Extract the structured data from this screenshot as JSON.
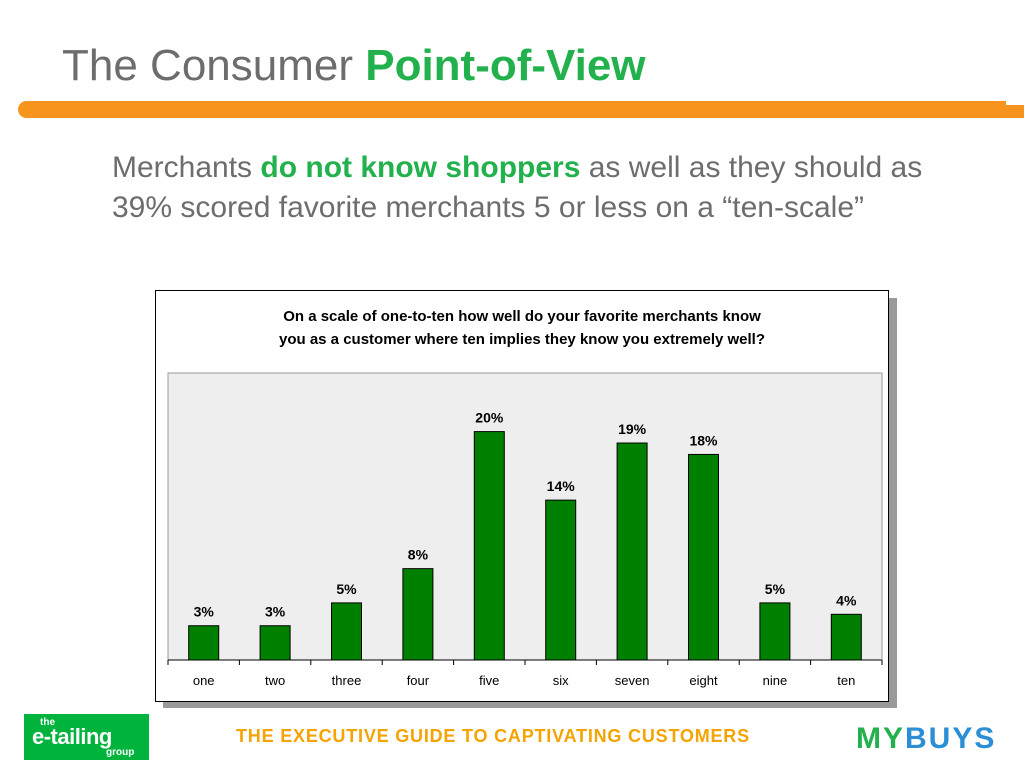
{
  "slide": {
    "title_plain": "The Consumer ",
    "title_accent": "Point-of-View",
    "body_before": "Merchants ",
    "body_highlight": "do not know shoppers",
    "body_after": " as well as they should as 39% scored favorite merchants 5 or less on a “ten-scale”"
  },
  "colors": {
    "accent_green": "#22b14c",
    "rule_orange": "#f7941d",
    "bar_green": "#008000",
    "plot_background": "#eeeeee"
  },
  "chart_data": {
    "type": "bar",
    "title_line1": "On a scale of one-to-ten how well do your favorite merchants know",
    "title_line2": "you as a customer where ten implies they know you extremely well?",
    "categories": [
      "one",
      "two",
      "three",
      "four",
      "five",
      "six",
      "seven",
      "eight",
      "nine",
      "ten"
    ],
    "values": [
      3,
      3,
      5,
      8,
      20,
      14,
      19,
      18,
      5,
      4
    ],
    "value_labels": [
      "3%",
      "3%",
      "5%",
      "8%",
      "20%",
      "14%",
      "19%",
      "18%",
      "5%",
      "4%"
    ],
    "unit": "%",
    "ylim": [
      0,
      25
    ],
    "grid": false,
    "legend": "none"
  },
  "footer": {
    "logo_small": "the",
    "logo_main": "e-tailing",
    "logo_group": "group",
    "tagline": "THE EXECUTIVE GUIDE TO CAPTIVATING CUSTOMERS",
    "brand_part1": "MY",
    "brand_part2": "BUYS"
  }
}
